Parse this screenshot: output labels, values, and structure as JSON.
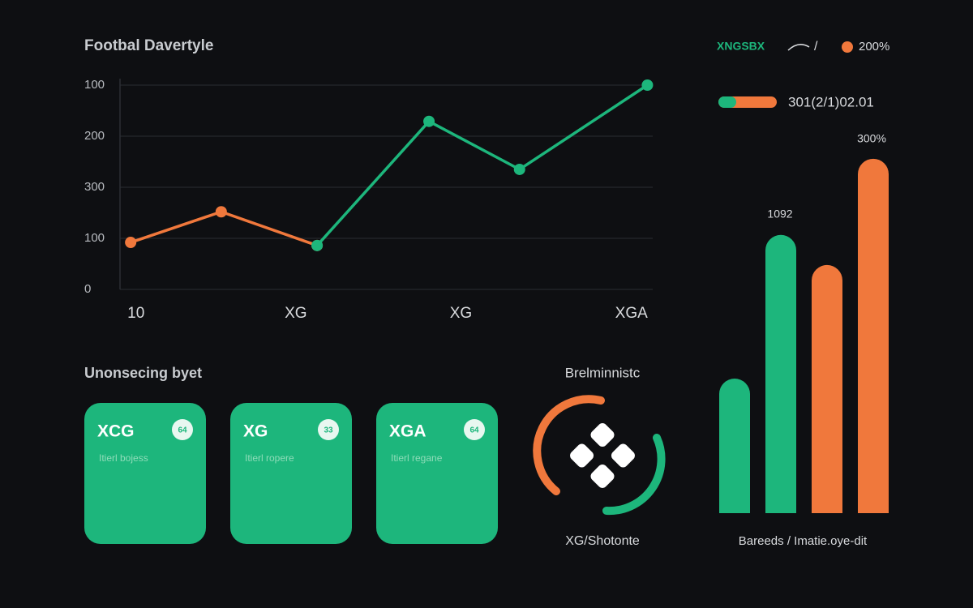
{
  "chart_data": [
    {
      "type": "line",
      "title": "Footbal Davertyle",
      "x": [
        0.2,
        1.9,
        3.7,
        5.8,
        7.5,
        9.9
      ],
      "xlim": [
        0,
        10
      ],
      "xticks": [
        {
          "value": 0.3,
          "label": "10"
        },
        {
          "value": 3.3,
          "label": "XG"
        },
        {
          "value": 6.4,
          "label": "XG"
        },
        {
          "value": 9.6,
          "label": "XGA"
        }
      ],
      "ylim": [
        0,
        400
      ],
      "yticks": [
        0,
        100,
        {
          "value": 200,
          "label": "300"
        },
        {
          "value": 300,
          "label": "200"
        },
        {
          "value": 400,
          "label": "100"
        }
      ],
      "grid": true,
      "series": [
        {
          "color": "#f0783c",
          "values": [
            92,
            152,
            86,
            null,
            null,
            null
          ]
        },
        {
          "color": "#1db67c",
          "values": [
            null,
            null,
            86,
            329,
            235,
            400
          ]
        }
      ]
    },
    {
      "type": "bar",
      "legend_text": "301(2/1)02.01",
      "categories": [
        null,
        null,
        null,
        null
      ],
      "values": [
        528,
        1092,
        974,
        1391
      ],
      "colors": [
        "#1db67c",
        "#1db67c",
        "#f0783c",
        "#f0783c"
      ],
      "ylim": [
        0,
        1400
      ],
      "annotations": [
        "1092",
        "300%"
      ],
      "xlabel": "Bareeds / Imatie.oye-dit"
    }
  ],
  "top_legend": {
    "label": "XNGSBX",
    "separator": "/",
    "value": "200%"
  },
  "cards_section": {
    "title": "Unonsecing byet",
    "cards": [
      {
        "title": "XCG",
        "badge": "64",
        "subtitle": "Itierl bojess"
      },
      {
        "title": "XG",
        "badge": "33",
        "subtitle": "Itierl ropere"
      },
      {
        "title": "XGA",
        "badge": "64",
        "subtitle": "Itierl regane"
      }
    ]
  },
  "donut": {
    "title": "Brelminnistc",
    "caption": "XG/Shotonte"
  }
}
